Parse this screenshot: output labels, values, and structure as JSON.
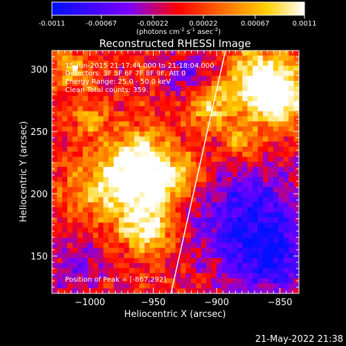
{
  "colorbar": {
    "ticks": [
      "-0.0011",
      "-0.00067",
      "-0.00022",
      "0.00022",
      "0.00067",
      "0.0011"
    ],
    "unit_label": "(photons cm",
    "unit_sup1": "-2",
    "unit_mid": " s",
    "unit_sup2": "-1",
    "unit_mid2": " asec",
    "unit_sup3": "-2",
    "unit_end": ")",
    "colors": [
      "#0010ff",
      "#7a00ff",
      "#ff0000",
      "#ff7a00",
      "#ffd000",
      "#ffffff"
    ]
  },
  "annotations": {
    "time_range": "15-Jun-2015 21:17:44.000 to 21:18:04.000",
    "detectors": "Detectors: 3F 5F 6F 7F 8F 9F, Att 0",
    "energy": "Energy Range: 25.0 - 50.0 keV",
    "clean": "Clean    Total counts: 359.",
    "peak": "Position of Peak = [-867,292]"
  },
  "footer": {
    "timestamp": "21-May-2022 21:38"
  },
  "chart_data": {
    "type": "heatmap",
    "title": "Reconstructed RHESSI Image",
    "xlabel": "Heliocentric X (arcsec)",
    "ylabel": "Heliocentric Y (arcsec)",
    "xlim": [
      -1030,
      -835
    ],
    "ylim": [
      120,
      315
    ],
    "x_ticks": [
      -1000,
      -950,
      -900,
      -850
    ],
    "y_ticks": [
      150,
      200,
      250,
      300
    ],
    "x_tick_labels": [
      "−1000",
      "−950",
      "−900",
      "−850"
    ],
    "y_tick_labels": [
      "150",
      "200",
      "250",
      "300"
    ],
    "colormap_range": [
      -0.0011,
      0.0011
    ],
    "limb_line": [
      [
        -936,
        120
      ],
      [
        -893,
        315
      ]
    ],
    "peak_position": [
      -867,
      292
    ],
    "hot_spots": [
      {
        "x": -985,
        "y": 205,
        "r": 28,
        "v": 0.8
      },
      {
        "x": -960,
        "y": 230,
        "r": 22,
        "v": 0.9
      },
      {
        "x": -950,
        "y": 205,
        "r": 20,
        "v": 0.85
      },
      {
        "x": -955,
        "y": 172,
        "r": 20,
        "v": 0.9
      },
      {
        "x": -925,
        "y": 215,
        "r": 18,
        "v": 0.6
      },
      {
        "x": -905,
        "y": 270,
        "r": 18,
        "v": 0.7
      },
      {
        "x": -867,
        "y": 292,
        "r": 25,
        "v": 1.0
      },
      {
        "x": -850,
        "y": 275,
        "r": 22,
        "v": 0.95
      },
      {
        "x": -1015,
        "y": 300,
        "r": 15,
        "v": 0.6
      },
      {
        "x": -1000,
        "y": 260,
        "r": 14,
        "v": 0.5
      },
      {
        "x": -880,
        "y": 240,
        "r": 14,
        "v": 0.6
      }
    ],
    "cold_regions": [
      {
        "x": -875,
        "y": 180,
        "r": 45,
        "v": -0.8
      },
      {
        "x": -855,
        "y": 145,
        "r": 30,
        "v": -0.6
      },
      {
        "x": -1010,
        "y": 140,
        "r": 25,
        "v": -0.4
      },
      {
        "x": -920,
        "y": 295,
        "r": 18,
        "v": -0.5
      }
    ]
  }
}
